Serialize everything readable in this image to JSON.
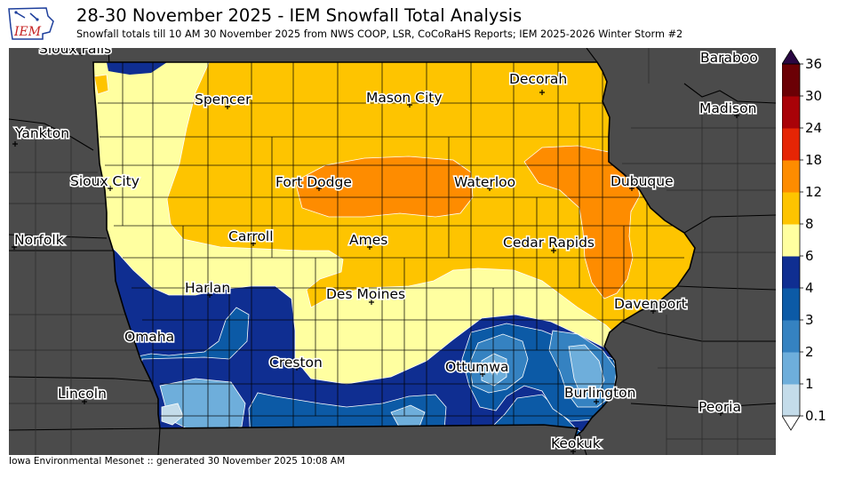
{
  "header": {
    "logo_text": "IEM",
    "title": "28-30 November 2025 - IEM Snowfall Total Analysis",
    "subtitle": "Snowfall totals till 10 AM 30 November 2025 from NWS COOP, LSR, CoCoRaHS Reports; IEM 2025-2026 Winter Storm #2"
  },
  "footer": {
    "text": "Iowa Environmental Mesonet :: generated 30 November 2025 10:08 AM"
  },
  "cities": {
    "sioux_falls": "Sioux Falls",
    "baraboo": "Baraboo",
    "decorah": "Decorah",
    "spencer": "Spencer",
    "mason_city": "Mason City",
    "madison": "Madison",
    "yankton": "Yankton",
    "sioux_city": "Sioux City",
    "fort_dodge": "Fort Dodge",
    "waterloo": "Waterloo",
    "dubuque": "Dubuque",
    "norfolk": "Norfolk",
    "carroll": "Carroll",
    "ames": "Ames",
    "cedar_rapids": "Cedar Rapids",
    "harlan": "Harlan",
    "des_moines": "Des Moines",
    "davenport": "Davenport",
    "omaha": "Omaha",
    "creston": "Creston",
    "ottumwa": "Ottumwa",
    "lincoln": "Lincoln",
    "burlington": "Burlington",
    "peoria": "Peoria",
    "keokuk": "Keokuk"
  },
  "colorbar": {
    "levels": [
      "0.1",
      "1",
      "2",
      "3",
      "4",
      "6",
      "8",
      "12",
      "18",
      "24",
      "30",
      "36"
    ],
    "colors": [
      "#c4dcea",
      "#6eaedb",
      "#3582c1",
      "#0c5aa6",
      "#0f2e91",
      "#ffffa0",
      "#fec400",
      "#fe8c00",
      "#e52505",
      "#a90208",
      "#6b0005",
      "#2a0742"
    ]
  },
  "map_colors": {
    "background_states": "#4b4b4b",
    "iowa_base": "#fec400"
  }
}
